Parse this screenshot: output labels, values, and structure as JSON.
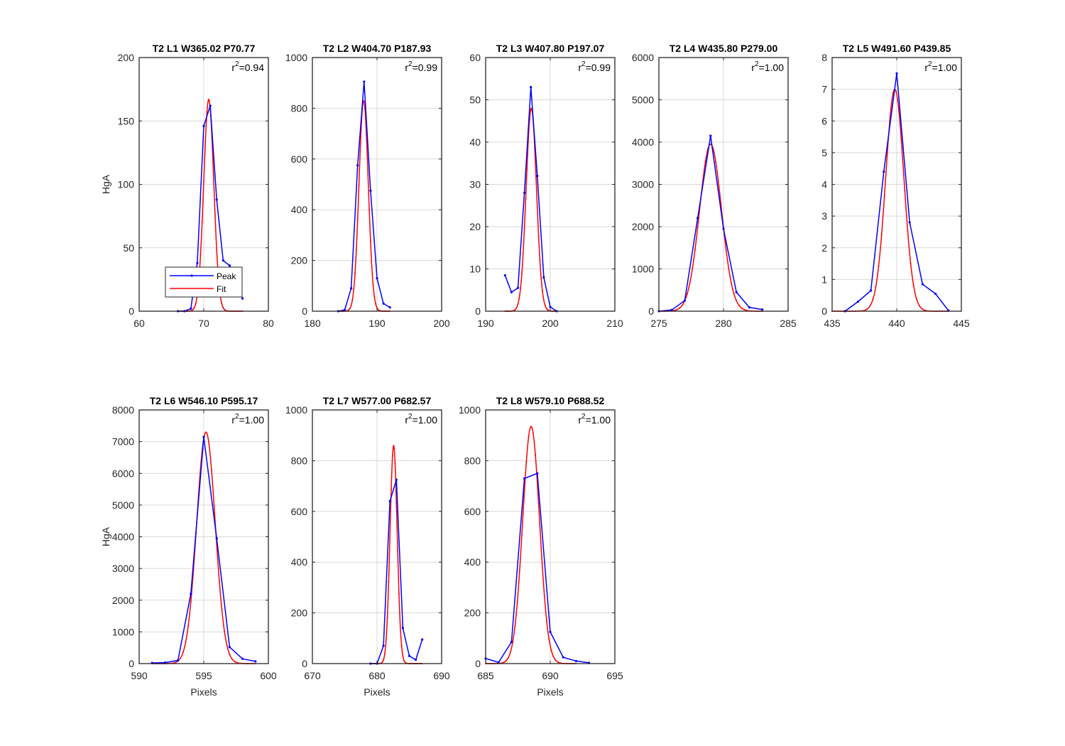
{
  "figure": {
    "background": "#ffffff",
    "colors": {
      "peak": "#0000ff",
      "fit": "#ff0000",
      "grid": "#d9d9d9",
      "axes": "#262626"
    }
  },
  "legend": {
    "entries": [
      "Peak",
      "Fit"
    ],
    "location": "lower-left of first panel"
  },
  "chart_data": [
    {
      "type": "line",
      "title": "T2 L1 W365.02 P70.77",
      "r2_label": "r",
      "r2_value": "=0.94",
      "xlabel": "",
      "ylabel": "HgA",
      "xlim": [
        60,
        80
      ],
      "ylim": [
        0,
        200
      ],
      "xticks": [
        60,
        70,
        80
      ],
      "yticks": [
        0,
        50,
        100,
        150,
        200
      ],
      "vline": 70,
      "grid": true,
      "series": [
        {
          "name": "Peak",
          "x": [
            66,
            67,
            68,
            69,
            70,
            71,
            72,
            73,
            74,
            75,
            76
          ],
          "y": [
            0,
            0,
            2,
            38,
            146,
            162,
            88,
            40,
            36,
            26,
            10
          ]
        },
        {
          "name": "Fit",
          "type": "gaussian",
          "amp": 167,
          "mu": 70.77,
          "sigma": 0.78,
          "xrange": [
            66,
            76
          ]
        }
      ]
    },
    {
      "type": "line",
      "title": "T2 L2 W404.70 P187.93",
      "r2_label": "r",
      "r2_value": "=0.99",
      "xlabel": "",
      "ylabel": "",
      "xlim": [
        180,
        200
      ],
      "ylim": [
        0,
        1000
      ],
      "xticks": [
        180,
        190,
        200
      ],
      "yticks": [
        0,
        200,
        400,
        600,
        800,
        1000
      ],
      "vline": 190,
      "grid": true,
      "series": [
        {
          "name": "Peak",
          "x": [
            184,
            185,
            186,
            187,
            188,
            189,
            190,
            191,
            192
          ],
          "y": [
            0,
            5,
            90,
            575,
            905,
            475,
            130,
            30,
            15
          ]
        },
        {
          "name": "Fit",
          "type": "gaussian",
          "amp": 830,
          "mu": 187.93,
          "sigma": 0.72,
          "xrange": [
            184,
            192
          ]
        }
      ]
    },
    {
      "type": "line",
      "title": "T2 L3 W407.80 P197.07",
      "r2_label": "r",
      "r2_value": "=0.99",
      "xlabel": "",
      "ylabel": "",
      "xlim": [
        190,
        210
      ],
      "ylim": [
        0,
        60
      ],
      "xticks": [
        190,
        200,
        210
      ],
      "yticks": [
        0,
        10,
        20,
        30,
        40,
        50,
        60
      ],
      "vline": 200,
      "grid": true,
      "series": [
        {
          "name": "Peak",
          "x": [
            193,
            194,
            195,
            196,
            197,
            198,
            199,
            200,
            201
          ],
          "y": [
            8.5,
            4.5,
            5.5,
            28,
            53,
            32,
            8,
            1,
            0
          ]
        },
        {
          "name": "Fit",
          "type": "gaussian",
          "amp": 48,
          "mu": 197.07,
          "sigma": 0.8,
          "xrange": [
            193,
            201
          ]
        }
      ]
    },
    {
      "type": "line",
      "title": "T2 L4 W435.80 P279.00",
      "r2_label": "r",
      "r2_value": "=1.00",
      "xlabel": "",
      "ylabel": "",
      "xlim": [
        275,
        285
      ],
      "ylim": [
        0,
        6000
      ],
      "xticks": [
        275,
        280,
        285
      ],
      "yticks": [
        0,
        1000,
        2000,
        3000,
        4000,
        5000,
        6000
      ],
      "vline": 280,
      "grid": true,
      "series": [
        {
          "name": "Peak",
          "x": [
            275,
            276,
            277,
            278,
            279,
            280,
            281,
            282,
            283
          ],
          "y": [
            0,
            30,
            250,
            2200,
            4150,
            1950,
            450,
            90,
            40
          ]
        },
        {
          "name": "Fit",
          "type": "gaussian",
          "amp": 3950,
          "mu": 279.0,
          "sigma": 0.85,
          "xrange": [
            275,
            283
          ]
        }
      ]
    },
    {
      "type": "line",
      "title": "T2 L5 W491.60 P439.85",
      "r2_label": "r",
      "r2_value": "=1.00",
      "xlabel": "",
      "ylabel": "",
      "xlim": [
        435,
        445
      ],
      "ylim": [
        0,
        8
      ],
      "xticks": [
        435,
        440,
        445
      ],
      "yticks": [
        0,
        1,
        2,
        3,
        4,
        5,
        6,
        7,
        8
      ],
      "vline": 440,
      "grid": true,
      "series": [
        {
          "name": "Peak",
          "x": [
            436,
            437,
            438,
            439,
            440,
            441,
            442,
            443,
            444
          ],
          "y": [
            0,
            0.3,
            0.65,
            4.4,
            7.5,
            2.8,
            0.85,
            0.55,
            0.02
          ]
        },
        {
          "name": "Fit",
          "type": "gaussian",
          "amp": 7.0,
          "mu": 439.85,
          "sigma": 0.7,
          "xrange": [
            435,
            444
          ]
        }
      ]
    },
    {
      "type": "line",
      "title": "T2 L6 W546.10 P595.17",
      "r2_label": "r",
      "r2_value": "=1.00",
      "xlabel": "Pixels",
      "ylabel": "HgA",
      "xlim": [
        590,
        600
      ],
      "ylim": [
        0,
        8000
      ],
      "xticks": [
        590,
        595,
        600
      ],
      "yticks": [
        0,
        1000,
        2000,
        3000,
        4000,
        5000,
        6000,
        7000,
        8000
      ],
      "vline": 595,
      "grid": true,
      "series": [
        {
          "name": "Peak",
          "x": [
            591,
            592,
            593,
            594,
            595,
            596,
            597,
            598,
            599
          ],
          "y": [
            20,
            30,
            100,
            2200,
            7150,
            3950,
            520,
            150,
            70
          ]
        },
        {
          "name": "Fit",
          "type": "gaussian",
          "amp": 7300,
          "mu": 595.17,
          "sigma": 0.72,
          "xrange": [
            591,
            599
          ]
        }
      ]
    },
    {
      "type": "line",
      "title": "T2 L7 W577.00 P682.57",
      "r2_label": "r",
      "r2_value": "=1.00",
      "xlabel": "Pixels",
      "ylabel": "",
      "xlim": [
        670,
        690
      ],
      "ylim": [
        0,
        1000
      ],
      "xticks": [
        670,
        680,
        690
      ],
      "yticks": [
        0,
        200,
        400,
        600,
        800,
        1000
      ],
      "vline": 680,
      "grid": true,
      "series": [
        {
          "name": "Peak",
          "x": [
            679,
            680,
            681,
            682,
            683,
            684,
            685,
            686,
            687
          ],
          "y": [
            0,
            0,
            70,
            640,
            725,
            140,
            30,
            15,
            95
          ]
        },
        {
          "name": "Fit",
          "type": "gaussian",
          "amp": 860,
          "mu": 682.57,
          "sigma": 0.55,
          "xrange": [
            679,
            687
          ]
        }
      ]
    },
    {
      "type": "line",
      "title": "T2 L8 W579.10 P688.52",
      "r2_label": "r",
      "r2_value": "=1.00",
      "xlabel": "Pixels",
      "ylabel": "",
      "xlim": [
        685,
        695
      ],
      "ylim": [
        0,
        1000
      ],
      "xticks": [
        685,
        690,
        695
      ],
      "yticks": [
        0,
        200,
        400,
        600,
        800,
        1000
      ],
      "vline": 690,
      "grid": true,
      "series": [
        {
          "name": "Peak",
          "x": [
            685,
            686,
            687,
            688,
            689,
            690,
            691,
            692,
            693
          ],
          "y": [
            20,
            5,
            85,
            730,
            750,
            125,
            25,
            10,
            3
          ]
        },
        {
          "name": "Fit",
          "type": "gaussian",
          "amp": 935,
          "mu": 688.52,
          "sigma": 0.65,
          "xrange": [
            685,
            692
          ]
        }
      ]
    }
  ]
}
